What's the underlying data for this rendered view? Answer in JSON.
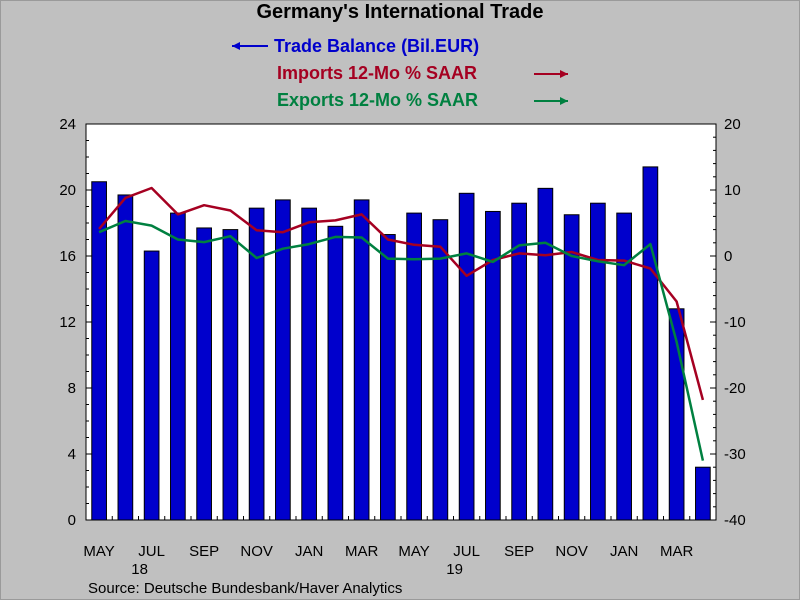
{
  "chart_data": {
    "type": "bar+line",
    "title": "Germany's International Trade",
    "categories": [
      "MAY 18",
      "JUN 18",
      "JUL 18",
      "AUG 18",
      "SEP 18",
      "OCT 18",
      "NOV 18",
      "DEC 18",
      "JAN 19",
      "FEB 19",
      "MAR 19",
      "APR 19",
      "MAY 19",
      "JUN 19",
      "JUL 19",
      "AUG 19",
      "SEP 19",
      "OCT 19",
      "NOV 19",
      "DEC 19",
      "JAN 20",
      "FEB 20",
      "MAR 20",
      "APR 20"
    ],
    "x_tick_labels": [
      "MAY",
      "JUL",
      "SEP",
      "NOV",
      "JAN",
      "MAR",
      "MAY",
      "JUL",
      "SEP",
      "NOV",
      "JAN",
      "MAR"
    ],
    "year_labels": [
      "18",
      "19"
    ],
    "left_axis": {
      "ylim": [
        0,
        24
      ],
      "ticks": [
        "0",
        "4",
        "8",
        "12",
        "16",
        "20",
        "24"
      ]
    },
    "right_axis": {
      "ylim": [
        -40,
        20
      ],
      "ticks": [
        "-40",
        "-30",
        "-20",
        "-10",
        "0",
        "10",
        "20"
      ]
    },
    "series": [
      {
        "name": "Trade Balance (Bil.EUR)",
        "legend_arrow": "left",
        "axis": "left",
        "type": "bar",
        "color": "#0000cc",
        "values": [
          20.5,
          19.7,
          16.3,
          18.6,
          17.7,
          17.6,
          18.9,
          19.4,
          18.9,
          17.8,
          19.4,
          17.3,
          18.6,
          18.2,
          19.8,
          18.7,
          19.2,
          20.1,
          18.5,
          19.2,
          18.6,
          21.4,
          12.8,
          3.2
        ]
      },
      {
        "name": "Imports 12-Mo % SAAR",
        "legend_arrow": "right",
        "axis": "right",
        "type": "line",
        "color": "#a50021",
        "values": [
          4.1,
          8.8,
          10.3,
          6.3,
          7.7,
          6.9,
          3.9,
          3.6,
          5.1,
          5.4,
          6.3,
          2.5,
          1.7,
          1.4,
          -3.0,
          -0.6,
          0.4,
          0.1,
          0.6,
          -0.6,
          -0.7,
          -1.9,
          -6.9,
          -21.8
        ]
      },
      {
        "name": "Exports 12-Mo % SAAR",
        "legend_arrow": "right",
        "axis": "right",
        "type": "line",
        "color": "#008040",
        "values": [
          3.6,
          5.3,
          4.6,
          2.5,
          2.1,
          3.0,
          -0.3,
          1.1,
          1.8,
          2.9,
          2.8,
          -0.4,
          -0.5,
          -0.4,
          0.4,
          -0.9,
          1.6,
          2.0,
          0.0,
          -0.8,
          -1.4,
          1.8,
          -13.0,
          -31.0
        ]
      }
    ],
    "grid": false,
    "legend_position": "top-center"
  },
  "source_text": "Source:  Deutsche Bundesbank/Haver Analytics"
}
